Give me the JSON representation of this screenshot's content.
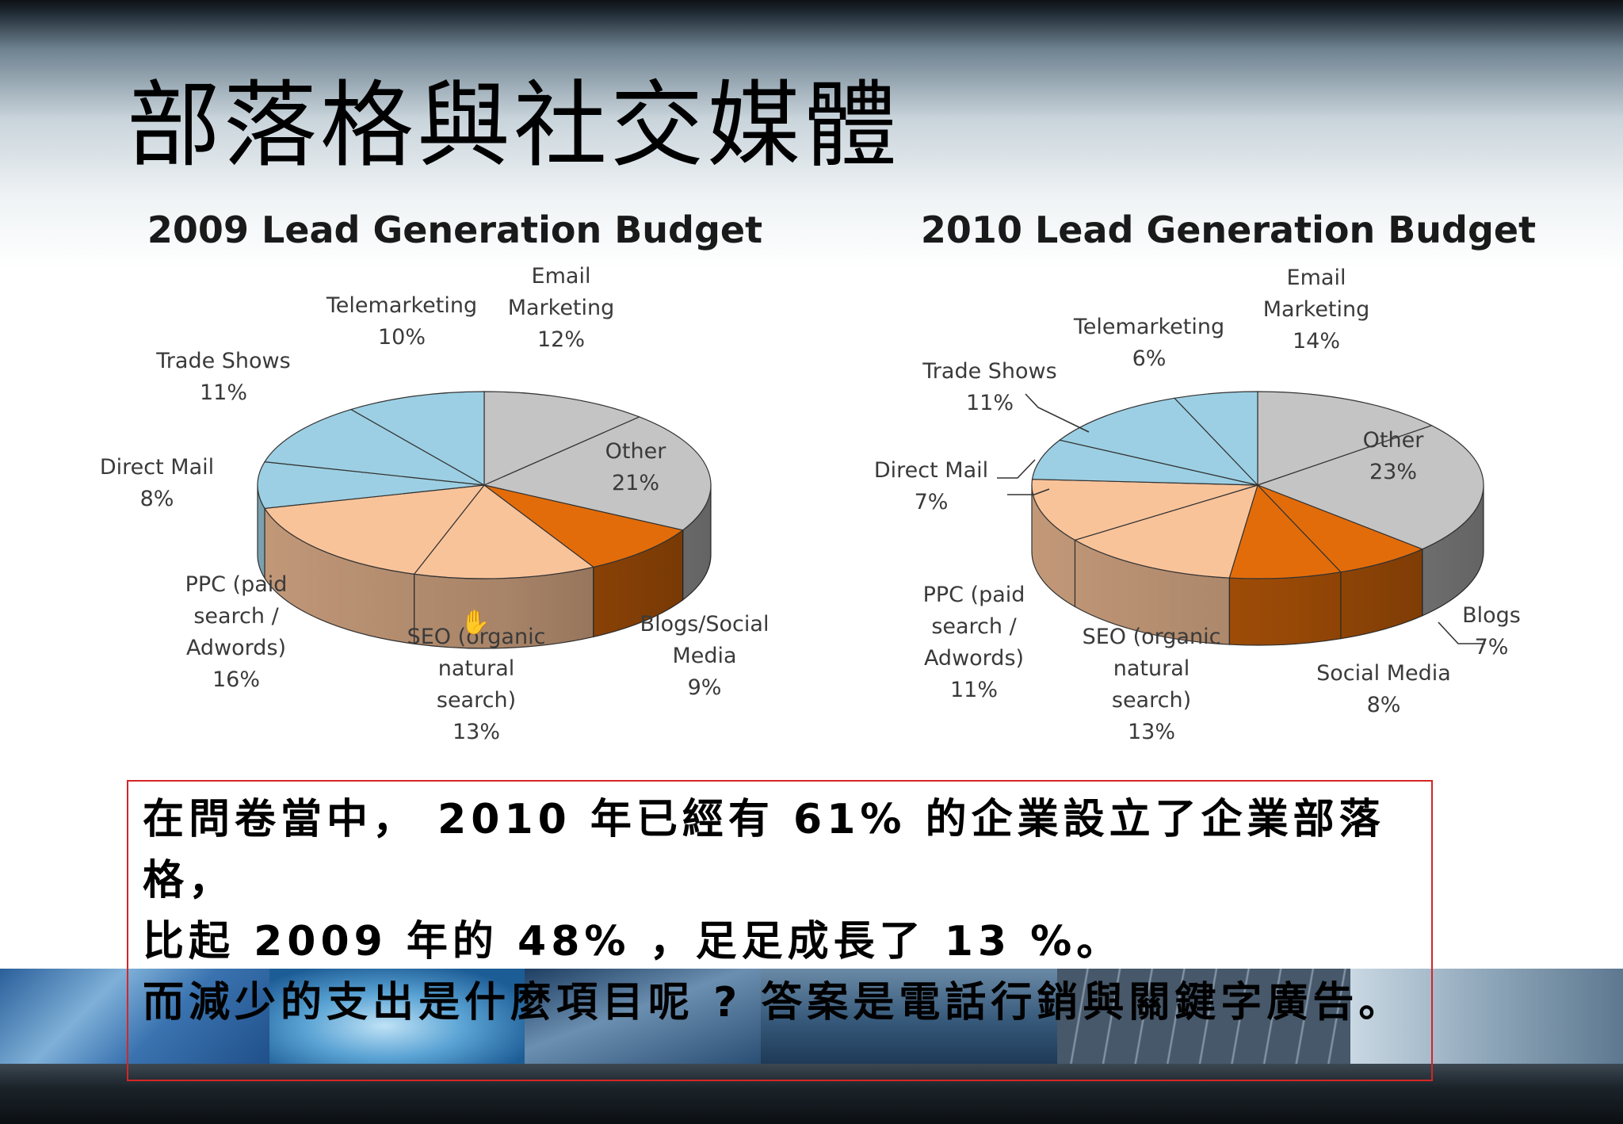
{
  "slide": {
    "title": "部落格與社交媒體",
    "summary": {
      "lines": [
        "在問卷當中， 2010 年已經有 61% 的企業設立了企業部落格，",
        "比起 2009 年的 48% ，足足成長了 13 %。",
        "而減少的支出是什麼項目呢 ? 答案是電話行銷與關鍵字廣告。"
      ]
    }
  },
  "colors": {
    "light_blue": "#9ccfe3",
    "gray": "#c4c4c4",
    "orange": "#e36c0a",
    "peach": "#f9c39a",
    "outline": "#333333",
    "textbox_border": "#d42626"
  },
  "chart_data": [
    {
      "type": "pie",
      "title": "2009 Lead Generation Budget",
      "unit": "%",
      "slices": [
        {
          "name": "Email Marketing",
          "value": 12,
          "label_lines": [
            "Email",
            "Marketing",
            "12%"
          ],
          "color": "#c4c4c4"
        },
        {
          "name": "Other",
          "value": 21,
          "label_lines": [
            "Other",
            "21%"
          ],
          "color": "#c4c4c4"
        },
        {
          "name": "Blogs/Social Media",
          "value": 9,
          "label_lines": [
            "Blogs/Social",
            "Media",
            "9%"
          ],
          "color": "#e36c0a"
        },
        {
          "name": "SEO (organic natural search)",
          "value": 13,
          "label_lines": [
            "SEO (organic",
            "natural",
            "search)",
            "13%"
          ],
          "color": "#f9c39a"
        },
        {
          "name": "PPC (paid search / Adwords)",
          "value": 16,
          "label_lines": [
            "PPC (paid",
            "search /",
            "Adwords)",
            "16%"
          ],
          "color": "#f9c39a"
        },
        {
          "name": "Direct Mail",
          "value": 8,
          "label_lines": [
            "Direct Mail",
            "8%"
          ],
          "color": "#9ccfe3"
        },
        {
          "name": "Trade Shows",
          "value": 11,
          "label_lines": [
            "Trade Shows",
            "11%"
          ],
          "color": "#9ccfe3"
        },
        {
          "name": "Telemarketing",
          "value": 10,
          "label_lines": [
            "Telemarketing",
            "10%"
          ],
          "color": "#9ccfe3"
        }
      ]
    },
    {
      "type": "pie",
      "title": "2010 Lead Generation Budget",
      "unit": "%",
      "slices": [
        {
          "name": "Email Marketing",
          "value": 14,
          "label_lines": [
            "Email",
            "Marketing",
            "14%"
          ],
          "color": "#c4c4c4"
        },
        {
          "name": "Other",
          "value": 23,
          "label_lines": [
            "Other",
            "23%"
          ],
          "color": "#c4c4c4"
        },
        {
          "name": "Blogs",
          "value": 7,
          "label_lines": [
            "Blogs",
            "7%"
          ],
          "color": "#e36c0a"
        },
        {
          "name": "Social Media",
          "value": 8,
          "label_lines": [
            "Social Media",
            "8%"
          ],
          "color": "#e36c0a"
        },
        {
          "name": "SEO (organic natural search)",
          "value": 13,
          "label_lines": [
            "SEO (organic",
            "natural",
            "search)",
            "13%"
          ],
          "color": "#f9c39a"
        },
        {
          "name": "PPC (paid search / Adwords)",
          "value": 11,
          "label_lines": [
            "PPC (paid",
            "search /",
            "Adwords)",
            "11%"
          ],
          "color": "#f9c39a"
        },
        {
          "name": "Direct Mail",
          "value": 7,
          "label_lines": [
            "Direct Mail",
            "7%"
          ],
          "color": "#9ccfe3"
        },
        {
          "name": "Trade Shows",
          "value": 11,
          "label_lines": [
            "Trade Shows",
            "11%"
          ],
          "color": "#9ccfe3"
        },
        {
          "name": "Telemarketing",
          "value": 6,
          "label_lines": [
            "Telemarketing",
            "6%"
          ],
          "color": "#9ccfe3"
        }
      ]
    }
  ]
}
